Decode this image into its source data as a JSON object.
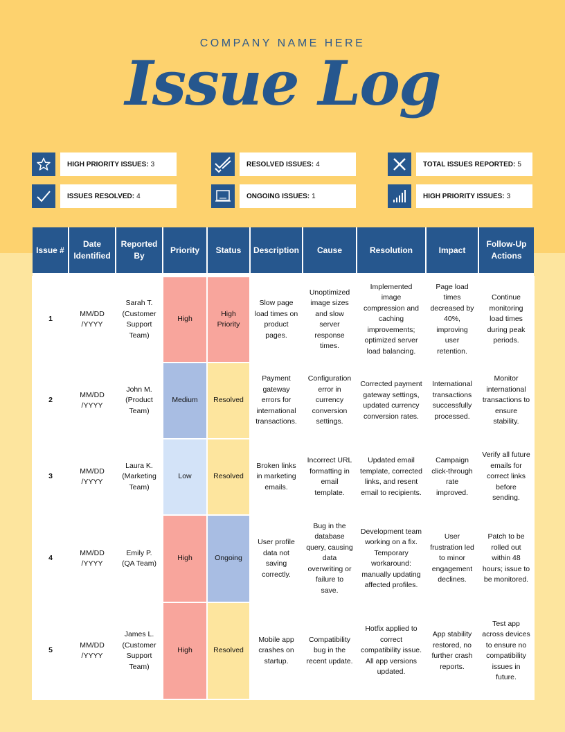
{
  "header": {
    "company": "COMPANY NAME HERE",
    "title": "Issue Log"
  },
  "stats": [
    {
      "icon": "star-icon",
      "label": "HIGH PRIORITY ISSUES:",
      "value": "3"
    },
    {
      "icon": "double-check-icon",
      "label": "RESOLVED ISSUES:",
      "value": "4"
    },
    {
      "icon": "x-mark-icon",
      "label": "TOTAL ISSUES REPORTED:",
      "value": "5"
    },
    {
      "icon": "check-icon",
      "label": "ISSUES RESOLVED:",
      "value": "4"
    },
    {
      "icon": "monitor-icon",
      "label": "ONGOING ISSUES:",
      "value": "1"
    },
    {
      "icon": "bar-chart-icon",
      "label": "HIGH PRIORITY ISSUES:",
      "value": "3"
    }
  ],
  "table": {
    "headers": [
      "Issue #",
      "Date Identified",
      "Reported By",
      "Priority",
      "Status",
      "Description",
      "Cause",
      "Resolution",
      "Impact",
      "Follow-Up Actions"
    ],
    "rows": [
      {
        "issue": "1",
        "date": "MM/DD /YYYY",
        "reporter": "Sarah T. (Customer Support Team)",
        "priority": "High",
        "status": "High Priority",
        "description": "Slow page load times on product pages.",
        "cause": "Unoptimized image sizes and slow server response times.",
        "resolution": "Implemented image compression and caching improvements; optimized server load balancing.",
        "impact": "Page load times decreased by 40%, improving user retention.",
        "followup": "Continue monitoring load times during peak periods."
      },
      {
        "issue": "2",
        "date": "MM/DD /YYYY",
        "reporter": "John M. (Product Team)",
        "priority": "Medium",
        "status": "Resolved",
        "description": "Payment gateway errors for international transactions.",
        "cause": "Configuration error in currency conversion settings.",
        "resolution": "Corrected payment gateway settings, updated currency conversion rates.",
        "impact": "International transactions successfully processed.",
        "followup": "Monitor international transactions to ensure stability."
      },
      {
        "issue": "3",
        "date": "MM/DD /YYYY",
        "reporter": "Laura K. (Marketing Team)",
        "priority": "Low",
        "status": "Resolved",
        "description": "Broken links in marketing emails.",
        "cause": "Incorrect URL formatting in email template.",
        "resolution": "Updated email template, corrected links, and resent email to recipients.",
        "impact": "Campaign click-through rate improved.",
        "followup": "Verify all future emails for correct links before sending."
      },
      {
        "issue": "4",
        "date": "MM/DD /YYYY",
        "reporter": "Emily P. (QA Team)",
        "priority": "High",
        "status": "Ongoing",
        "description": "User profile data not saving correctly.",
        "cause": "Bug in the database query, causing data overwriting or failure to save.",
        "resolution": "Development team working on a fix. Temporary workaround: manually updating affected profiles.",
        "impact": "User frustration led to minor engagement declines.",
        "followup": "Patch to be rolled out within 48 hours; issue to be monitored."
      },
      {
        "issue": "5",
        "date": "MM/DD /YYYY",
        "reporter": "James L. (Customer Support Team)",
        "priority": "High",
        "status": "Resolved",
        "description": "Mobile app crashes on startup.",
        "cause": "Compatibility bug in the recent update.",
        "resolution": "Hotfix applied to correct compatibility issue. All app versions updated.",
        "impact": "App stability restored, no further crash reports.",
        "followup": "Test app across devices to ensure no compatibility issues in future."
      }
    ]
  },
  "colors": {
    "accent": "#26578e",
    "header_band": "#fdd26e",
    "background": "#fde59e",
    "high": "#f8a59c",
    "medium": "#a8bde3",
    "low": "#d3e3f8",
    "resolved": "#fde59e",
    "ongoing": "#a8bde3"
  }
}
